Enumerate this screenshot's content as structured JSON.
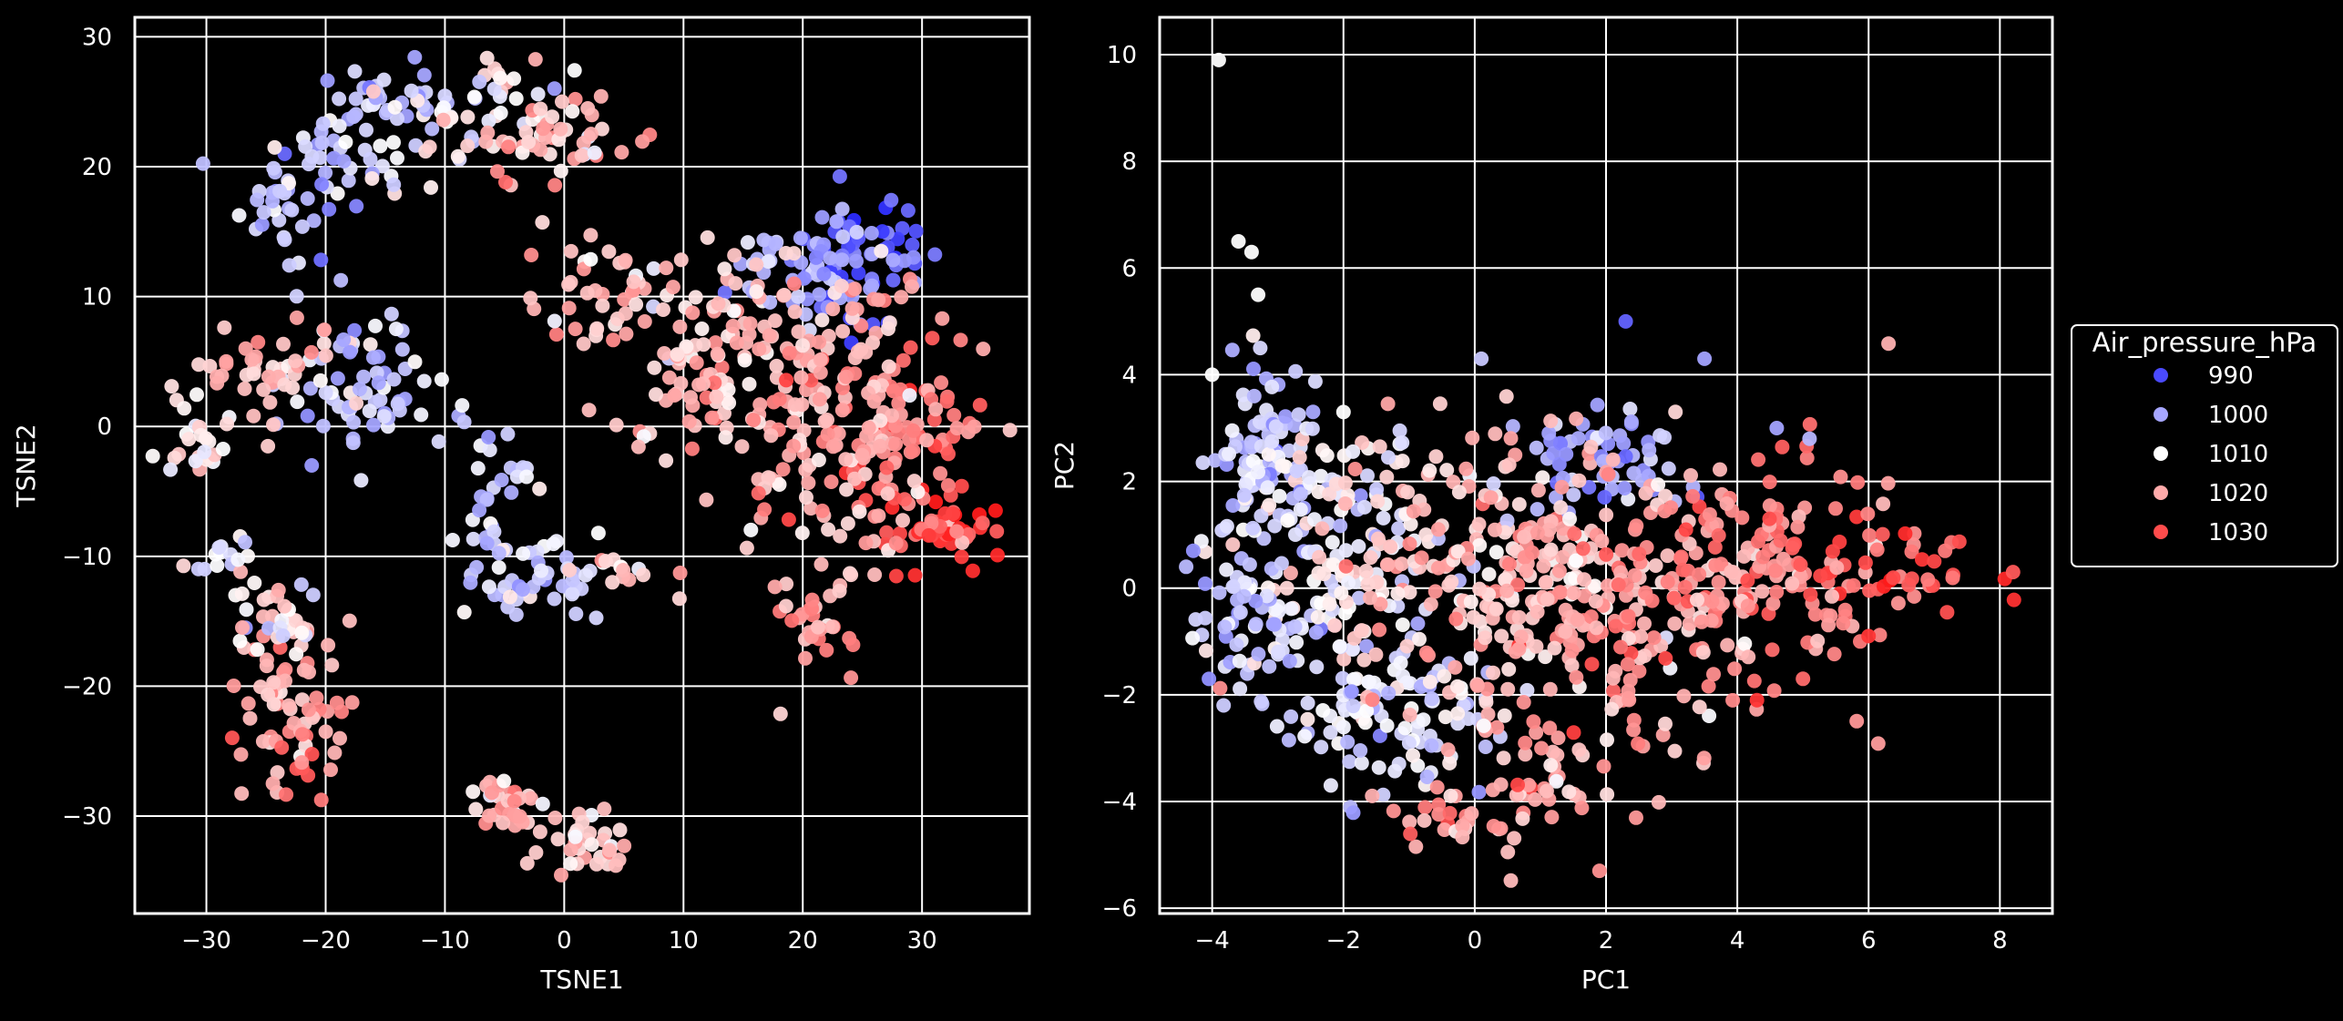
{
  "colors": {
    "background": "#000000",
    "axis_frame": "#ffffff",
    "grid": "#ffffff",
    "text": "#ffffff",
    "colormap_low": "#1a1aff",
    "colormap_mid": "#ffffff",
    "colormap_high": "#ff1a1a"
  },
  "legend": {
    "title": "Air_pressure_hPa",
    "placement": "outside-right",
    "entries": [
      {
        "label": "990",
        "value": 990,
        "color": "#4a4aff"
      },
      {
        "label": "1000",
        "value": 1000,
        "color": "#a6a6ff"
      },
      {
        "label": "1010",
        "value": 1010,
        "color": "#ffffff"
      },
      {
        "label": "1020",
        "value": 1020,
        "color": "#ffaaaa"
      },
      {
        "label": "1030",
        "value": 1030,
        "color": "#ff4c4c"
      }
    ]
  },
  "chart_data": [
    {
      "type": "scatter",
      "xlabel": "TSNE1",
      "ylabel": "TSNE2",
      "xlim": [
        -36,
        39
      ],
      "ylim": [
        -37.5,
        31.5
      ],
      "xticks": [
        -30,
        -20,
        -10,
        0,
        10,
        20,
        30
      ],
      "yticks": [
        -30,
        -20,
        -10,
        0,
        10,
        20,
        30
      ],
      "xtick_labels": [
        "−30",
        "−20",
        "−10",
        "0",
        "10",
        "20",
        "30"
      ],
      "ytick_labels": [
        "−30",
        "−20",
        "−10",
        "0",
        "10",
        "20",
        "30"
      ],
      "grid": true,
      "color_variable": "Air_pressure_hPa",
      "color_range": [
        985,
        1035
      ],
      "clusters": [
        {
          "center": [
            25,
            13
          ],
          "spread": [
            3,
            2.5
          ],
          "pressure": 994,
          "n": 60
        },
        {
          "center": [
            20,
            12
          ],
          "spread": [
            3,
            2
          ],
          "pressure": 1002,
          "n": 50
        },
        {
          "center": [
            32,
            -8
          ],
          "spread": [
            2.5,
            1.5
          ],
          "pressure": 1030,
          "n": 45
        },
        {
          "center": [
            29,
            -1
          ],
          "spread": [
            3,
            4
          ],
          "pressure": 1024,
          "n": 80
        },
        {
          "center": [
            21,
            2
          ],
          "spread": [
            5,
            6
          ],
          "pressure": 1018,
          "n": 180
        },
        {
          "center": [
            12,
            6
          ],
          "spread": [
            4,
            4
          ],
          "pressure": 1016,
          "n": 90
        },
        {
          "center": [
            3,
            10
          ],
          "spread": [
            3,
            2
          ],
          "pressure": 1015,
          "n": 40
        },
        {
          "center": [
            21,
            -15
          ],
          "spread": [
            1.5,
            2
          ],
          "pressure": 1020,
          "n": 30
        },
        {
          "center": [
            -15,
            25
          ],
          "spread": [
            3,
            1.5
          ],
          "pressure": 1004,
          "n": 40
        },
        {
          "center": [
            -7,
            25
          ],
          "spread": [
            3,
            2
          ],
          "pressure": 1010,
          "n": 40
        },
        {
          "center": [
            0,
            22
          ],
          "spread": [
            4,
            2
          ],
          "pressure": 1017,
          "n": 50
        },
        {
          "center": [
            -19,
            20
          ],
          "spread": [
            3,
            1.5
          ],
          "pressure": 1005,
          "n": 40
        },
        {
          "center": [
            -24,
            16
          ],
          "spread": [
            1.5,
            2.5
          ],
          "pressure": 1006,
          "n": 25
        },
        {
          "center": [
            -17,
            3
          ],
          "spread": [
            3,
            3
          ],
          "pressure": 1004,
          "n": 70
        },
        {
          "center": [
            -25,
            4
          ],
          "spread": [
            3,
            1.5
          ],
          "pressure": 1016,
          "n": 40
        },
        {
          "center": [
            -30,
            -2
          ],
          "spread": [
            2,
            1.5
          ],
          "pressure": 1012,
          "n": 25
        },
        {
          "center": [
            -29,
            -10
          ],
          "spread": [
            1.2,
            0.8
          ],
          "pressure": 1008,
          "n": 15
        },
        {
          "center": [
            -6,
            -5
          ],
          "spread": [
            1.5,
            3
          ],
          "pressure": 1006,
          "n": 35
        },
        {
          "center": [
            -2,
            -12
          ],
          "spread": [
            2.5,
            1.5
          ],
          "pressure": 1004,
          "n": 45
        },
        {
          "center": [
            4,
            -11
          ],
          "spread": [
            2,
            1
          ],
          "pressure": 1014,
          "n": 15
        },
        {
          "center": [
            -23,
            -21
          ],
          "spread": [
            2.5,
            3
          ],
          "pressure": 1018,
          "n": 70
        },
        {
          "center": [
            -24,
            -15
          ],
          "spread": [
            2,
            1.5
          ],
          "pressure": 1012,
          "n": 30
        },
        {
          "center": [
            -5,
            -29
          ],
          "spread": [
            1.5,
            1.5
          ],
          "pressure": 1018,
          "n": 30
        },
        {
          "center": [
            2,
            -32
          ],
          "spread": [
            2,
            1.5
          ],
          "pressure": 1016,
          "n": 35
        },
        {
          "center": [
            -22,
            -26
          ],
          "spread": [
            0.8,
            0.6
          ],
          "pressure": 1028,
          "n": 6
        }
      ]
    },
    {
      "type": "scatter",
      "xlabel": "PC1",
      "ylabel": "PC2",
      "xlim": [
        -4.8,
        8.8
      ],
      "ylim": [
        -6.1,
        10.7
      ],
      "xticks": [
        -4,
        -2,
        0,
        2,
        4,
        6,
        8
      ],
      "yticks": [
        -6,
        -4,
        -2,
        0,
        2,
        4,
        6,
        8,
        10
      ],
      "xtick_labels": [
        "−4",
        "−2",
        "0",
        "2",
        "4",
        "6",
        "8"
      ],
      "ytick_labels": [
        "−6",
        "−4",
        "−2",
        "0",
        "2",
        "4",
        "6",
        "8",
        "10"
      ],
      "grid": true,
      "color_variable": "Air_pressure_hPa",
      "color_range": [
        985,
        1035
      ],
      "clusters": [
        {
          "center": [
            -3.2,
            2.5
          ],
          "spread": [
            0.35,
            0.9
          ],
          "pressure": 1005,
          "n": 90
        },
        {
          "center": [
            -2.2,
            0.5
          ],
          "spread": [
            0.8,
            1.2
          ],
          "pressure": 1008,
          "n": 160
        },
        {
          "center": [
            -1.2,
            -2.5
          ],
          "spread": [
            0.8,
            0.8
          ],
          "pressure": 1006,
          "n": 100
        },
        {
          "center": [
            -3.5,
            -0.8
          ],
          "spread": [
            0.4,
            0.8
          ],
          "pressure": 1004,
          "n": 50
        },
        {
          "center": [
            0,
            0.5
          ],
          "spread": [
            1.2,
            1.2
          ],
          "pressure": 1016,
          "n": 180
        },
        {
          "center": [
            2,
            2.4
          ],
          "spread": [
            0.6,
            0.5
          ],
          "pressure": 1000,
          "n": 60
        },
        {
          "center": [
            2,
            -0.5
          ],
          "spread": [
            1.3,
            1.4
          ],
          "pressure": 1019,
          "n": 220
        },
        {
          "center": [
            4.2,
            0.3
          ],
          "spread": [
            1.1,
            1.0
          ],
          "pressure": 1022,
          "n": 150
        },
        {
          "center": [
            6.3,
            0.5
          ],
          "spread": [
            0.8,
            0.5
          ],
          "pressure": 1028,
          "n": 40
        },
        {
          "center": [
            0.8,
            -3.8
          ],
          "spread": [
            0.6,
            0.6
          ],
          "pressure": 1019,
          "n": 40
        },
        {
          "center": [
            -0.6,
            -4.3
          ],
          "spread": [
            0.4,
            0.3
          ],
          "pressure": 1020,
          "n": 20
        }
      ],
      "extra_points": [
        [
          -3.9,
          9.9,
          1010
        ],
        [
          -3.6,
          6.5,
          1010
        ],
        [
          -3.4,
          6.3,
          1010
        ],
        [
          -3.3,
          5.5,
          1010
        ],
        [
          -4.0,
          4.0,
          1010
        ],
        [
          2.3,
          5.0,
          993
        ],
        [
          3.5,
          4.3,
          1000
        ],
        [
          0.1,
          4.3,
          1004
        ],
        [
          -2.0,
          3.3,
          1010
        ],
        [
          1.9,
          -5.3,
          1022
        ],
        [
          8.2,
          0.3,
          1028
        ],
        [
          6.0,
          -0.9,
          1032
        ],
        [
          7.0,
          0.5,
          1030
        ],
        [
          5.0,
          -1.7,
          1026
        ],
        [
          4.3,
          -2.1,
          1032
        ],
        [
          4.6,
          3.0,
          1000
        ],
        [
          5.1,
          2.8,
          1002
        ]
      ]
    }
  ]
}
